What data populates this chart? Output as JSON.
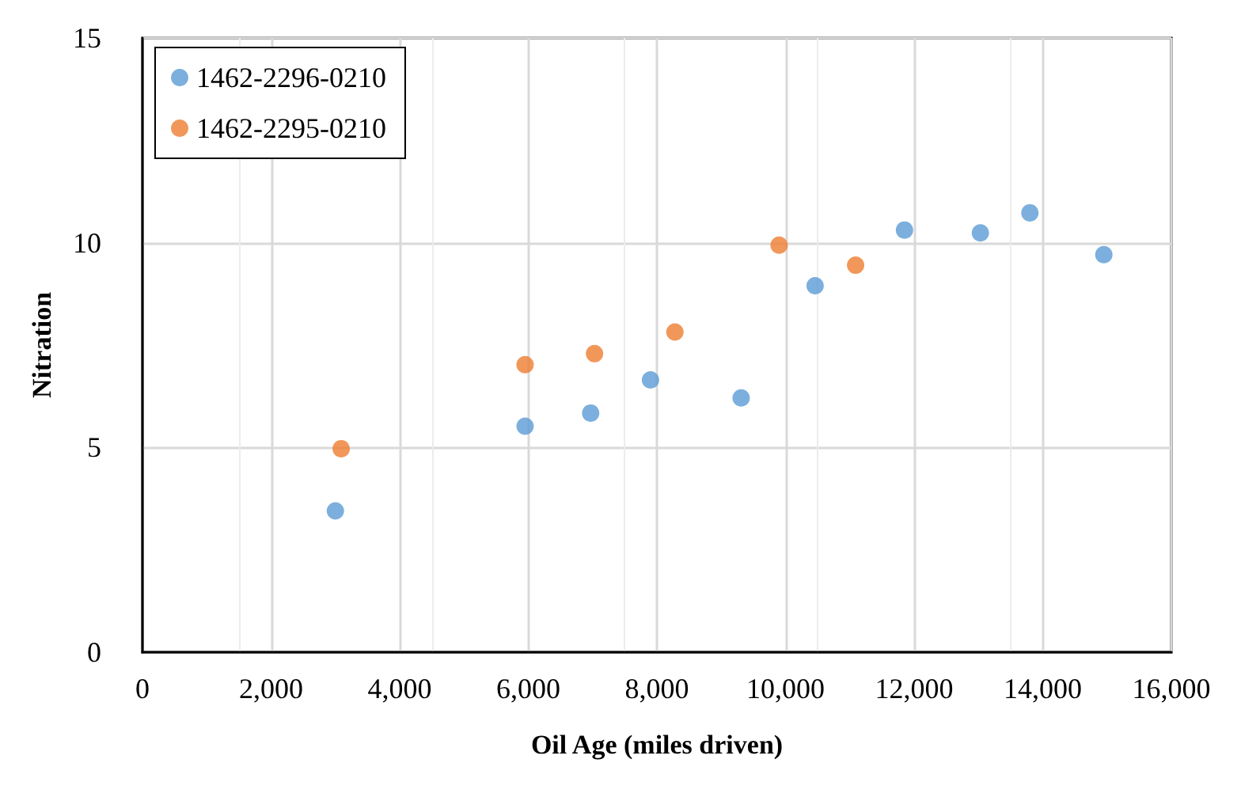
{
  "chart_data": {
    "type": "scatter",
    "xlabel": "Oil Age (miles driven)",
    "ylabel": "Nitration",
    "xlim": [
      0,
      16000
    ],
    "xticks": [
      {
        "value": 0,
        "label": "0"
      },
      {
        "value": 2000,
        "label": "2,000"
      },
      {
        "value": 4000,
        "label": "4,000"
      },
      {
        "value": 6000,
        "label": "6,000"
      },
      {
        "value": 8000,
        "label": "8,000"
      },
      {
        "value": 10000,
        "label": "10,000"
      },
      {
        "value": 12000,
        "label": "12,000"
      },
      {
        "value": 14000,
        "label": "14,000"
      },
      {
        "value": 16000,
        "label": "16,000"
      }
    ],
    "ylim": [
      0,
      15
    ],
    "yticks": [
      0,
      5,
      10,
      15
    ],
    "grid": true,
    "legend": "top left",
    "marker": "circle",
    "series": [
      {
        "name": "1462-2296-0210",
        "color": "#5b9bd5",
        "x": [
          3000,
          5950,
          6970,
          7900,
          9310,
          10460,
          11850,
          13030,
          13800,
          14950
        ],
        "values": [
          3.45,
          5.52,
          5.84,
          6.65,
          6.21,
          8.95,
          10.31,
          10.24,
          10.73,
          9.71
        ]
      },
      {
        "name": "1462-2295-0210",
        "color": "#ed7d31",
        "x": [
          3090,
          5950,
          7030,
          8280,
          9900,
          11090
        ],
        "values": [
          4.97,
          7.02,
          7.29,
          7.82,
          9.94,
          9.45
        ]
      }
    ]
  }
}
